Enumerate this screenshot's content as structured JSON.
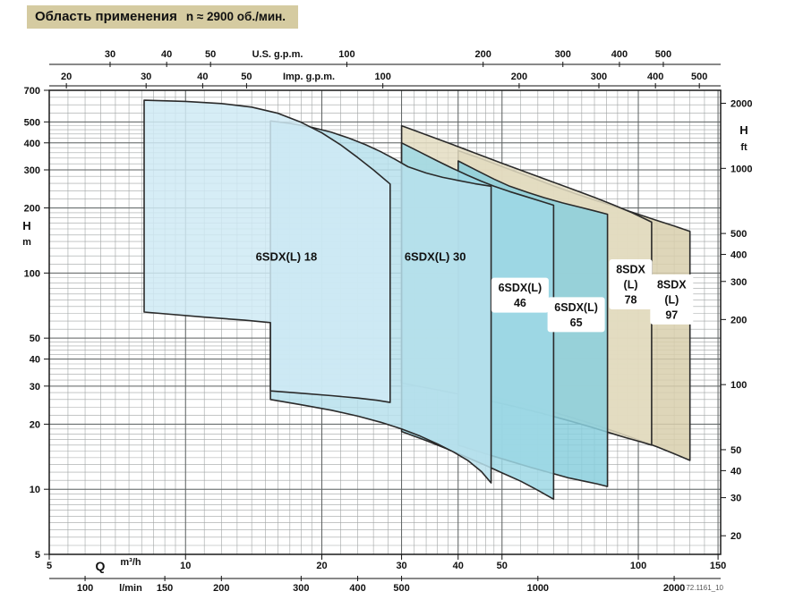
{
  "title": {
    "main": "Область применения",
    "rpm": "n ≈ 2900 об./мин."
  },
  "footer": {
    "note": "72.1161_10"
  },
  "colors": {
    "title_bg": "#d5cba1",
    "grid_minor": "#a0a4a4",
    "grid_major": "#5d6262",
    "frame": "#1a1a1a",
    "region_outline": "#2a2a2a",
    "text": "#111111"
  },
  "chart_data": {
    "type": "area",
    "scale": "log-log",
    "title": "Область применения n ≈ 2900 об./мин.",
    "x_range_m3h": [
      5,
      152
    ],
    "y_range_m": [
      5,
      700
    ],
    "q_symbol": "Q",
    "x_axes": [
      {
        "id": "us_gpm",
        "label": "U.S. g.p.m.",
        "position": "top",
        "to_m3h": 0.22712,
        "ticks": [
          30,
          40,
          50,
          100,
          200,
          300,
          400,
          500
        ]
      },
      {
        "id": "imp_gpm",
        "label": "Imp. g.p.m.",
        "position": "top",
        "to_m3h": 0.27276,
        "ticks": [
          20,
          30,
          40,
          50,
          100,
          200,
          300,
          400,
          500
        ]
      },
      {
        "id": "m3h",
        "label": "m³/h",
        "position": "bottom",
        "to_m3h": 1,
        "ticks": [
          5,
          10,
          20,
          30,
          40,
          50,
          100,
          150
        ]
      },
      {
        "id": "lmin",
        "label": "l/min",
        "position": "bottom",
        "to_m3h": 0.06,
        "ticks": [
          100,
          150,
          200,
          300,
          400,
          500,
          1000,
          2000
        ]
      }
    ],
    "y_axes": [
      {
        "id": "h_m",
        "label": "H",
        "unit": "m",
        "position": "left",
        "to_m": 1,
        "ticks": [
          700,
          500,
          400,
          300,
          200,
          100,
          50,
          40,
          30,
          20,
          10,
          5
        ]
      },
      {
        "id": "h_ft",
        "label": "H",
        "unit": "ft",
        "position": "right",
        "to_m": 0.3048,
        "ticks": [
          2000,
          1000,
          500,
          400,
          300,
          200,
          100,
          50,
          40,
          30,
          20
        ]
      }
    ],
    "regions": [
      {
        "id": "8sdx-97",
        "label_lines": [
          "8SDX",
          "(L)",
          "97"
        ],
        "label_box": true,
        "label_q": 118.5,
        "label_h": 75.5,
        "fill": "#d8cfad",
        "upper": [
          [
            40,
            368
          ],
          [
            45,
            338
          ],
          [
            51,
            306
          ],
          [
            58,
            277
          ],
          [
            65,
            253
          ],
          [
            73,
            232
          ],
          [
            81,
            216
          ],
          [
            90,
            201
          ],
          [
            100,
            187
          ],
          [
            110,
            175
          ],
          [
            120,
            165
          ],
          [
            130,
            156
          ]
        ],
        "lower": [
          [
            40,
            29
          ],
          [
            50,
            26.2
          ],
          [
            60,
            23.8
          ],
          [
            70,
            21.7
          ],
          [
            80,
            19.9
          ],
          [
            90,
            18.3
          ],
          [
            100,
            16.9
          ],
          [
            110,
            15.7
          ],
          [
            120,
            14.6
          ],
          [
            130,
            13.6
          ]
        ]
      },
      {
        "id": "8sdx-78",
        "label_lines": [
          "8SDX",
          "(L)",
          "78"
        ],
        "label_box": true,
        "label_q": 96.2,
        "label_h": 88.7,
        "fill": "#e4ddc2",
        "upper": [
          [
            30,
            480
          ],
          [
            34,
            436
          ],
          [
            39,
            392
          ],
          [
            44,
            356
          ],
          [
            50,
            322
          ],
          [
            57,
            291
          ],
          [
            64,
            266
          ],
          [
            72,
            243
          ],
          [
            80,
            224
          ],
          [
            88,
            207
          ],
          [
            97,
            190
          ],
          [
            107,
            172
          ]
        ],
        "lower": [
          [
            30,
            31
          ],
          [
            38,
            28.2
          ],
          [
            46,
            25.9
          ],
          [
            54,
            24
          ],
          [
            62,
            22.3
          ],
          [
            70,
            20.8
          ],
          [
            78,
            19.5
          ],
          [
            86,
            18.3
          ],
          [
            94,
            17.3
          ],
          [
            101,
            16.6
          ],
          [
            107,
            16
          ]
        ]
      },
      {
        "id": "6sdxl-65",
        "label_lines": [
          "6SDX(L)",
          "65"
        ],
        "label_box": true,
        "label_q": 72.9,
        "label_h": 64.2,
        "fill": "#8acfdd",
        "upper": [
          [
            40,
            330
          ],
          [
            44,
            298
          ],
          [
            48,
            272
          ],
          [
            52,
            252
          ],
          [
            57,
            236
          ],
          [
            62,
            223
          ],
          [
            68,
            211
          ],
          [
            74,
            202
          ],
          [
            80,
            194
          ],
          [
            85.5,
            187
          ]
        ],
        "lower": [
          [
            40,
            16
          ],
          [
            46,
            14.6
          ],
          [
            52,
            13.5
          ],
          [
            58,
            12.6
          ],
          [
            64,
            11.9
          ],
          [
            70,
            11.3
          ],
          [
            76,
            10.9
          ],
          [
            81,
            10.6
          ],
          [
            85.5,
            10.3
          ]
        ]
      },
      {
        "id": "6sdxl-46",
        "label_lines": [
          "6SDX(L)",
          "46"
        ],
        "label_box": true,
        "label_q": 54.8,
        "label_h": 79,
        "fill": "#9ed8e5",
        "upper": [
          [
            30,
            400
          ],
          [
            33,
            362
          ],
          [
            36,
            330
          ],
          [
            39,
            304
          ],
          [
            42,
            283
          ],
          [
            45,
            266
          ],
          [
            48,
            252
          ],
          [
            52,
            238
          ],
          [
            56,
            227
          ],
          [
            60,
            217
          ],
          [
            65,
            206
          ]
        ],
        "lower": [
          [
            30,
            18.5
          ],
          [
            34,
            16.8
          ],
          [
            38,
            15.3
          ],
          [
            42,
            14
          ],
          [
            46,
            12.9
          ],
          [
            50,
            11.9
          ],
          [
            55,
            10.9
          ],
          [
            60,
            9.9
          ],
          [
            65,
            9
          ]
        ]
      },
      {
        "id": "6sdxl-30",
        "label_lines": [
          "6SDX(L) 30"
        ],
        "label_box": false,
        "label_q": 35.6,
        "label_h": 119,
        "fill": "#b7e0ec",
        "upper": [
          [
            15.4,
            505
          ],
          [
            17,
            492
          ],
          [
            19,
            472
          ],
          [
            21,
            448
          ],
          [
            23,
            420
          ],
          [
            25,
            392
          ],
          [
            27,
            364
          ],
          [
            29,
            336
          ],
          [
            31,
            310
          ],
          [
            34,
            290
          ],
          [
            37,
            277
          ],
          [
            40,
            268
          ],
          [
            43.5,
            259
          ],
          [
            47.3,
            252
          ]
        ],
        "lower": [
          [
            15.4,
            26
          ],
          [
            18,
            24.6
          ],
          [
            21,
            23.2
          ],
          [
            24,
            21.8
          ],
          [
            27,
            20.4
          ],
          [
            30,
            19
          ],
          [
            33,
            17.6
          ],
          [
            36,
            16.2
          ],
          [
            39,
            14.9
          ],
          [
            42,
            13.6
          ],
          [
            45,
            12.1
          ],
          [
            47.3,
            10.7
          ]
        ]
      },
      {
        "id": "6sdxl-18",
        "label_lines": [
          "6SDX(L) 18"
        ],
        "label_box": false,
        "label_q": 16.7,
        "label_h": 119,
        "fill": "#cfeaf4",
        "upper": [
          [
            8.1,
            630
          ],
          [
            10,
            622
          ],
          [
            12,
            608
          ],
          [
            14,
            585
          ],
          [
            16,
            548
          ],
          [
            18,
            498
          ],
          [
            20,
            445
          ],
          [
            22,
            392
          ],
          [
            24,
            342
          ],
          [
            26,
            300
          ],
          [
            27.3,
            275
          ],
          [
            28.3,
            258
          ]
        ],
        "lower": [
          [
            8.1,
            66
          ],
          [
            11,
            62.5
          ],
          [
            13.5,
            60.5
          ],
          [
            15.4,
            59
          ],
          [
            15.4,
            28.5
          ],
          [
            18,
            27.8
          ],
          [
            21,
            27.1
          ],
          [
            24,
            26.4
          ],
          [
            26.5,
            25.8
          ],
          [
            28.3,
            25.2
          ]
        ]
      }
    ]
  }
}
